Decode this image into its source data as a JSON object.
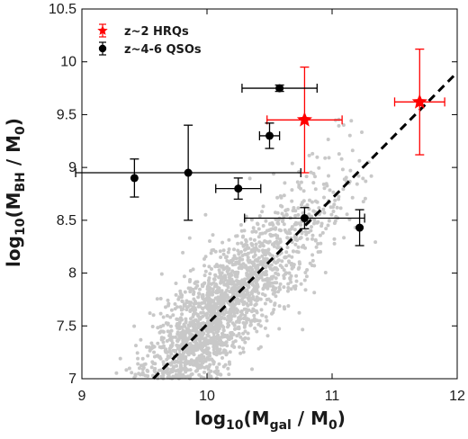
{
  "chart_data": {
    "type": "scatter",
    "xlabel": {
      "prefix": "log",
      "sub": "10",
      "open": "(M",
      "msub": "gal",
      "rest": " / M",
      "rsub": "0",
      "close": ")"
    },
    "ylabel": {
      "prefix": "log",
      "sub": "10",
      "open": "(M",
      "msub": "BH",
      "rest": " / M",
      "rsub": "0",
      "close": ")"
    },
    "xlim": [
      9,
      12
    ],
    "ylim": [
      7,
      10.5
    ],
    "xticks": [
      "9",
      "10",
      "11",
      "12"
    ],
    "yticks": [
      "7",
      "7.5",
      "8",
      "8.5",
      "9",
      "9.5",
      "10",
      "10.5"
    ],
    "grid": false,
    "legend_position": "top-left",
    "series": [
      {
        "name": "z~2 HRQs",
        "marker": "star",
        "color": "#ff0000",
        "points": [
          {
            "x": 10.78,
            "y": 9.45,
            "xerr": 0.3,
            "yerr": 0.5
          },
          {
            "x": 11.7,
            "y": 9.62,
            "xerr": 0.2,
            "yerr": 0.5
          }
        ]
      },
      {
        "name": "z~4-6 QSOs",
        "marker": "circle",
        "color": "#000000",
        "points": [
          {
            "x": 9.42,
            "y": 8.9,
            "xerr": 0,
            "yerr": 0.18
          },
          {
            "x": 9.85,
            "y": 8.95,
            "xerr": 0.9,
            "yerr": 0.45
          },
          {
            "x": 10.25,
            "y": 8.8,
            "xerr": 0.18,
            "yerr": 0.1
          },
          {
            "x": 10.5,
            "y": 9.3,
            "xerr": 0.08,
            "yerr": 0.12
          },
          {
            "x": 10.58,
            "y": 9.75,
            "xerr": 0.3,
            "yerr": 0.03
          },
          {
            "x": 10.78,
            "y": 8.52,
            "xerr": 0.48,
            "yerr": 0.1
          },
          {
            "x": 11.22,
            "y": 8.43,
            "xerr": 0,
            "yerr": 0.17
          }
        ]
      }
    ],
    "background_cloud": {
      "color": "#c8c8c8",
      "relation": {
        "slope": 1.2,
        "intercept": -4.5
      },
      "x_range": [
        9.25,
        11.35
      ],
      "scatter_dex": 0.28
    },
    "reference_line": {
      "style": "dashed",
      "color": "#000000",
      "x": [
        9.57,
        12
      ],
      "y": [
        7,
        9.9
      ]
    }
  }
}
